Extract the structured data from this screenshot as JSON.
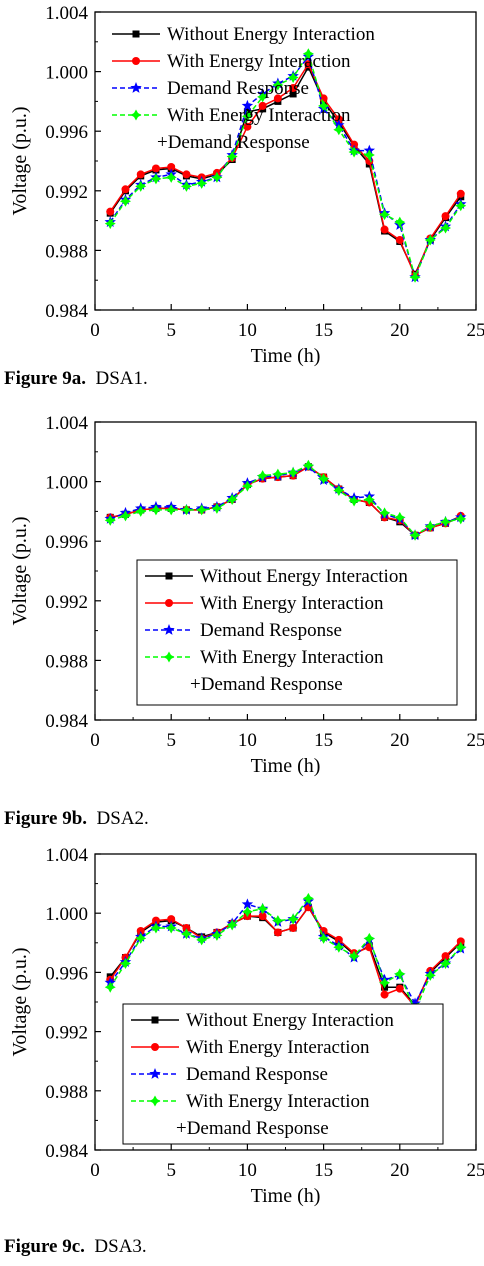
{
  "captions": [
    {
      "figure": "Figure 9a.",
      "name": "DSA1."
    },
    {
      "figure": "Figure 9b.",
      "name": "DSA2."
    },
    {
      "figure": "Figure 9c.",
      "name": "DSA3."
    }
  ],
  "chart_data": [
    {
      "type": "line",
      "title": "",
      "xlabel": "Time (h)",
      "ylabel": "Voltage (p.u.)",
      "xlim": [
        0,
        25
      ],
      "ylim": [
        0.984,
        1.004
      ],
      "xticks": [
        "0",
        "5",
        "10",
        "15",
        "20",
        "25"
      ],
      "yticks": [
        "0.984",
        "0.988",
        "0.992",
        "0.996",
        "1.000",
        "1.004"
      ],
      "grid": false,
      "legend_position": "top",
      "x": [
        1,
        2,
        3,
        4,
        5,
        6,
        7,
        8,
        9,
        10,
        11,
        12,
        13,
        14,
        15,
        16,
        17,
        18,
        19,
        20,
        21,
        22,
        23,
        24
      ],
      "series": [
        {
          "name": "Without Energy Interaction",
          "color": "#000000",
          "marker": "square",
          "dash": false,
          "values": [
            0.9905,
            0.992,
            0.993,
            0.9934,
            0.9935,
            0.993,
            0.9928,
            0.9931,
            0.9941,
            0.9973,
            0.9975,
            0.998,
            0.9985,
            1.0003,
            0.998,
            0.9966,
            0.995,
            0.9938,
            0.9893,
            0.9886,
            0.9864,
            0.9887,
            0.9902,
            0.9916
          ]
        },
        {
          "name": "With Energy Interaction",
          "color": "#ff0000",
          "marker": "circle",
          "dash": false,
          "values": [
            0.9906,
            0.9921,
            0.9931,
            0.9935,
            0.9936,
            0.9931,
            0.9929,
            0.9932,
            0.9942,
            0.9963,
            0.9977,
            0.9982,
            0.9989,
            1.0005,
            0.9982,
            0.9968,
            0.9951,
            0.994,
            0.9894,
            0.9887,
            0.9863,
            0.9888,
            0.9903,
            0.9918
          ]
        },
        {
          "name": "Demand Response",
          "color": "#0000ff",
          "marker": "star",
          "dash": true,
          "values": [
            0.9899,
            0.9914,
            0.9924,
            0.9929,
            0.9931,
            0.9924,
            0.9926,
            0.9929,
            0.9944,
            0.9977,
            0.9985,
            0.9992,
            0.9997,
            1.001,
            0.9975,
            0.9964,
            0.9947,
            0.9947,
            0.9905,
            0.9897,
            0.9862,
            0.9887,
            0.9896,
            0.9911
          ]
        },
        {
          "name": "With Energy Interaction +Demand Response",
          "color": "#00ff00",
          "marker": "diamond",
          "dash": true,
          "values": [
            0.9898,
            0.9913,
            0.9923,
            0.9928,
            0.9929,
            0.9923,
            0.9925,
            0.9929,
            0.9943,
            0.997,
            0.9983,
            0.9991,
            0.9996,
            1.0012,
            0.9977,
            0.9961,
            0.9946,
            0.9944,
            0.9904,
            0.9899,
            0.9862,
            0.9887,
            0.9895,
            0.991
          ]
        }
      ]
    },
    {
      "type": "line",
      "title": "",
      "xlabel": "Time (h)",
      "ylabel": "Voltage (p.u.)",
      "xlim": [
        0,
        25
      ],
      "ylim": [
        0.984,
        1.004
      ],
      "xticks": [
        "0",
        "5",
        "10",
        "15",
        "20",
        "25"
      ],
      "yticks": [
        "0.984",
        "0.988",
        "0.992",
        "0.996",
        "1.000",
        "1.004"
      ],
      "grid": false,
      "legend_position": "bottom-right",
      "x": [
        1,
        2,
        3,
        4,
        5,
        6,
        7,
        8,
        9,
        10,
        11,
        12,
        13,
        14,
        15,
        16,
        17,
        18,
        19,
        20,
        21,
        22,
        23,
        24
      ],
      "series": [
        {
          "name": "Without Energy Interaction",
          "color": "#000000",
          "marker": "square",
          "dash": false,
          "values": [
            0.9976,
            0.9978,
            0.9981,
            0.9982,
            0.9982,
            0.9981,
            0.9981,
            0.9983,
            0.9988,
            0.9998,
            1.0002,
            1.0003,
            1.0004,
            1.001,
            1.0003,
            0.9995,
            0.9988,
            0.9986,
            0.9976,
            0.9973,
            0.9964,
            0.9969,
            0.9972,
            0.9976
          ]
        },
        {
          "name": "With Energy Interaction",
          "color": "#ff0000",
          "marker": "circle",
          "dash": false,
          "values": [
            0.9976,
            0.9978,
            0.9981,
            0.9982,
            0.9982,
            0.9981,
            0.9981,
            0.9983,
            0.9988,
            0.9998,
            1.0002,
            1.0003,
            1.0004,
            1.001,
            1.0003,
            0.9995,
            0.9988,
            0.9986,
            0.9976,
            0.9974,
            0.9964,
            0.9969,
            0.9972,
            0.9977
          ]
        },
        {
          "name": "Demand Response",
          "color": "#0000ff",
          "marker": "star",
          "dash": true,
          "values": [
            0.9975,
            0.9979,
            0.9982,
            0.9983,
            0.9983,
            0.9981,
            0.9982,
            0.9983,
            0.9989,
            0.9999,
            1.0003,
            1.0004,
            1.0006,
            1.001,
            1.0001,
            0.9995,
            0.9989,
            0.999,
            0.9978,
            0.9975,
            0.9964,
            0.997,
            0.9973,
            0.9976
          ]
        },
        {
          "name": "With Energy Interaction +Demand Response",
          "color": "#00ff00",
          "marker": "diamond",
          "dash": true,
          "values": [
            0.9974,
            0.9977,
            0.998,
            0.9981,
            0.9981,
            0.9981,
            0.9981,
            0.9982,
            0.9988,
            0.9997,
            1.0004,
            1.0005,
            1.0006,
            1.0011,
            1.0002,
            0.9994,
            0.9987,
            0.9988,
            0.9979,
            0.9976,
            0.9964,
            0.997,
            0.9973,
            0.9975
          ]
        }
      ]
    },
    {
      "type": "line",
      "title": "",
      "xlabel": "Time (h)",
      "ylabel": "Voltage (p.u.)",
      "xlim": [
        0,
        25
      ],
      "ylim": [
        0.984,
        1.004
      ],
      "xticks": [
        "0",
        "5",
        "10",
        "15",
        "20",
        "25"
      ],
      "yticks": [
        "0.984",
        "0.988",
        "0.992",
        "0.996",
        "1.000",
        "1.004"
      ],
      "grid": false,
      "legend_position": "bottom-right",
      "x": [
        1,
        2,
        3,
        4,
        5,
        6,
        7,
        8,
        9,
        10,
        11,
        12,
        13,
        14,
        15,
        16,
        17,
        18,
        19,
        20,
        21,
        22,
        23,
        24
      ],
      "series": [
        {
          "name": "Without Energy Interaction",
          "color": "#000000",
          "marker": "square",
          "dash": false,
          "values": [
            0.9957,
            0.997,
            0.9987,
            0.9994,
            0.9995,
            0.999,
            0.9984,
            0.9987,
            0.9993,
            0.9998,
            0.9997,
            0.9987,
            0.999,
            1.0004,
            0.9987,
            0.9981,
            0.9972,
            0.9978,
            0.995,
            0.995,
            0.9938,
            0.996,
            0.997,
            0.998
          ]
        },
        {
          "name": "With Energy Interaction",
          "color": "#ff0000",
          "marker": "circle",
          "dash": false,
          "values": [
            0.9955,
            0.997,
            0.9988,
            0.9995,
            0.9996,
            0.999,
            0.9983,
            0.9987,
            0.9993,
            0.9998,
            0.9998,
            0.9987,
            0.999,
            1.0004,
            0.9988,
            0.9982,
            0.9973,
            0.9977,
            0.9945,
            0.9949,
            0.9937,
            0.9961,
            0.9971,
            0.9981
          ]
        },
        {
          "name": "Demand Response",
          "color": "#0000ff",
          "marker": "star",
          "dash": true,
          "values": [
            0.9953,
            0.9967,
            0.9984,
            0.9991,
            0.9991,
            0.9986,
            0.9983,
            0.9986,
            0.9993,
            1.0006,
            1.0003,
            0.9994,
            0.9996,
            1.0008,
            0.9984,
            0.9978,
            0.997,
            0.9982,
            0.9955,
            0.9958,
            0.9939,
            0.9959,
            0.9966,
            0.9976
          ]
        },
        {
          "name": "With Energy Interaction +Demand Response",
          "color": "#00ff00",
          "marker": "diamond",
          "dash": true,
          "values": [
            0.995,
            0.9966,
            0.9983,
            0.999,
            0.999,
            0.9986,
            0.9982,
            0.9985,
            0.9992,
            1.0001,
            1.0003,
            0.9995,
            0.9996,
            1.001,
            0.9983,
            0.9977,
            0.9971,
            0.9983,
            0.9953,
            0.9959,
            0.9934,
            0.9958,
            0.9966,
            0.9977
          ]
        }
      ]
    }
  ]
}
